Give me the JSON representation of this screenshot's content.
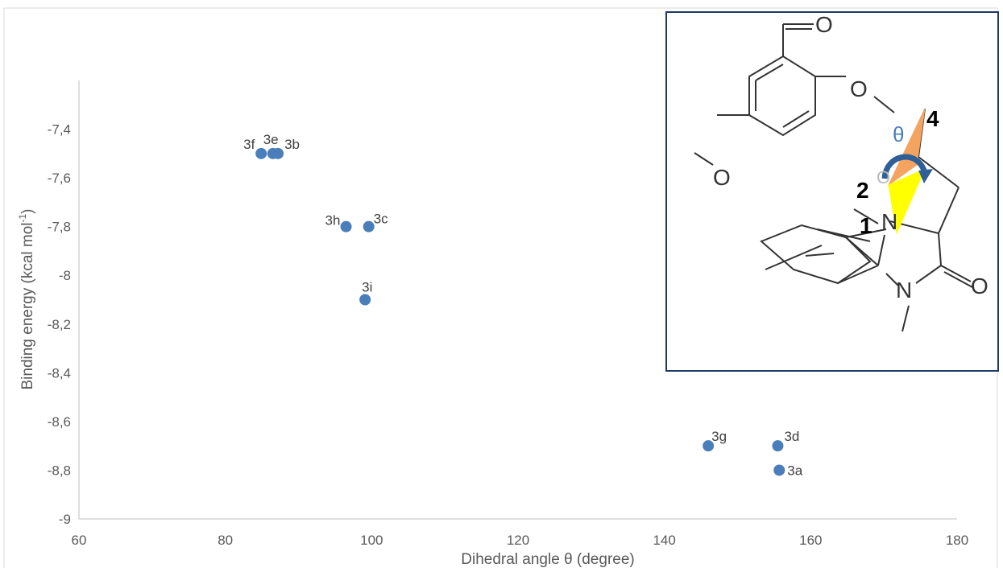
{
  "chart_data": {
    "type": "scatter",
    "xlabel": "Dihedral angle θ (degree)",
    "ylabel_main": "Binding energy  (kcal mol",
    "ylabel_sup": "-1",
    "ylabel_close": ")",
    "xlim": [
      60,
      180
    ],
    "ylim": [
      -9,
      -7.2
    ],
    "x_ticks": [
      60,
      80,
      100,
      120,
      140,
      160,
      180
    ],
    "x_tick_labels": [
      "60",
      "80",
      "100",
      "120",
      "140",
      "160",
      "180"
    ],
    "y_ticks": [
      -9,
      -8.8,
      -8.6,
      -8.4,
      -8.2,
      -8,
      -7.8,
      -7.6,
      -7.4
    ],
    "y_tick_labels": [
      "-9",
      "-8,8",
      "-8,6",
      "-8,4",
      "-8,2",
      "-8",
      "-7,8",
      "-7,6",
      "-7,4"
    ],
    "grid": false,
    "marker_color": "#4a7ebb",
    "points": [
      {
        "label": "3f",
        "x": 84.9,
        "y": -7.5
      },
      {
        "label": "3e",
        "x": 86.5,
        "y": -7.5
      },
      {
        "label": "3b",
        "x": 87.2,
        "y": -7.5
      },
      {
        "label": "3h",
        "x": 96.5,
        "y": -7.8
      },
      {
        "label": "3c",
        "x": 99.6,
        "y": -7.8
      },
      {
        "label": "3i",
        "x": 99.1,
        "y": -8.1
      },
      {
        "label": "3g",
        "x": 146.0,
        "y": -8.7
      },
      {
        "label": "3d",
        "x": 155.5,
        "y": -8.7
      },
      {
        "label": "3a",
        "x": 155.7,
        "y": -8.8
      }
    ]
  },
  "inset": {
    "atoms": {
      "O_aldehyde": "O",
      "O_ether_ring": "O",
      "O_methoxy": "O",
      "O_pyran": "O",
      "N1": "N",
      "N2": "N",
      "O_amide": "O"
    },
    "theta": "θ",
    "dihedral_labels": [
      "1",
      "2",
      "4"
    ],
    "colors": {
      "frame": "#1f3864",
      "wedge_orange": "#f4a460",
      "wedge_yellow": "#ffff00",
      "arrow": "#2e5f96",
      "theta": "#4a7ebb"
    }
  }
}
